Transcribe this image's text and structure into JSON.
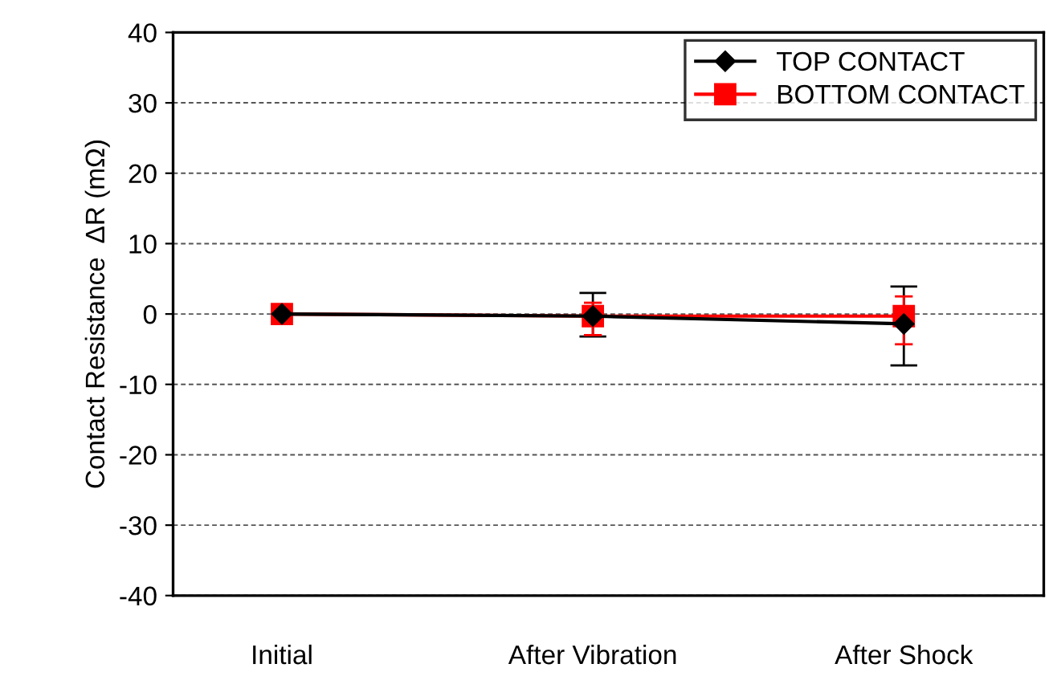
{
  "chart_data": {
    "type": "line",
    "ylabel": "Contact Resistance  ΔR (mΩ)",
    "categories": [
      "Initial",
      "After Vibration",
      "After Shock"
    ],
    "series": [
      {
        "name": "TOP CONTACT",
        "color": "#000000",
        "marker": "diamond",
        "values": [
          0,
          -0.3,
          -1.4
        ],
        "errors": [
          null,
          [
            -3.2,
            3.0
          ],
          [
            -7.3,
            3.9
          ]
        ]
      },
      {
        "name": "BOTTOM CONTACT",
        "color": "#ff0000",
        "marker": "square",
        "values": [
          0,
          -0.3,
          -0.3
        ],
        "errors": [
          null,
          [
            -3.0,
            1.6
          ],
          [
            -4.3,
            2.5
          ]
        ]
      }
    ],
    "ylim": [
      -40,
      40
    ],
    "yticks": [
      -40,
      -30,
      -20,
      -10,
      0,
      10,
      20,
      30,
      40
    ],
    "grid": "y",
    "legend": "top right",
    "line_style": "solid"
  }
}
